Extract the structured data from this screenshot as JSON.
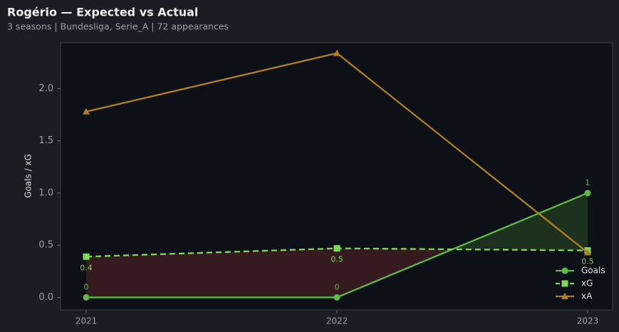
{
  "chart_data": {
    "type": "line",
    "title": "Rogério — Expected vs Actual",
    "subtitle": "3 seasons | Bundesliga, Serie_A | 72 appearances",
    "y_label": "Goals / xG",
    "categories": [
      "2021",
      "2022",
      "2023"
    ],
    "series": [
      {
        "name": "Goals",
        "color": "#5dbb46",
        "marker": "circle",
        "dash": false,
        "values": [
          0,
          0,
          1
        ],
        "value_labels": [
          "0",
          "0",
          "1"
        ]
      },
      {
        "name": "xG",
        "color": "#7ed957",
        "marker": "square",
        "dash": true,
        "values": [
          0.39,
          0.47,
          0.45
        ],
        "value_labels": [
          "0.4",
          "0.5",
          "0.5"
        ]
      },
      {
        "name": "xA",
        "color": "#b07f1f",
        "marker": "triangle",
        "dash": false,
        "values": [
          1.78,
          2.34,
          0.43
        ]
      }
    ],
    "ylim": [
      -0.12,
      2.44
    ],
    "yticks": [
      {
        "value": 0,
        "label": "0.0"
      },
      {
        "value": 0.5,
        "label": "0.5"
      },
      {
        "value": 1,
        "label": "1.0"
      },
      {
        "value": 1.5,
        "label": "1.5"
      },
      {
        "value": 2,
        "label": "2.0"
      }
    ],
    "legend": "lower right"
  }
}
